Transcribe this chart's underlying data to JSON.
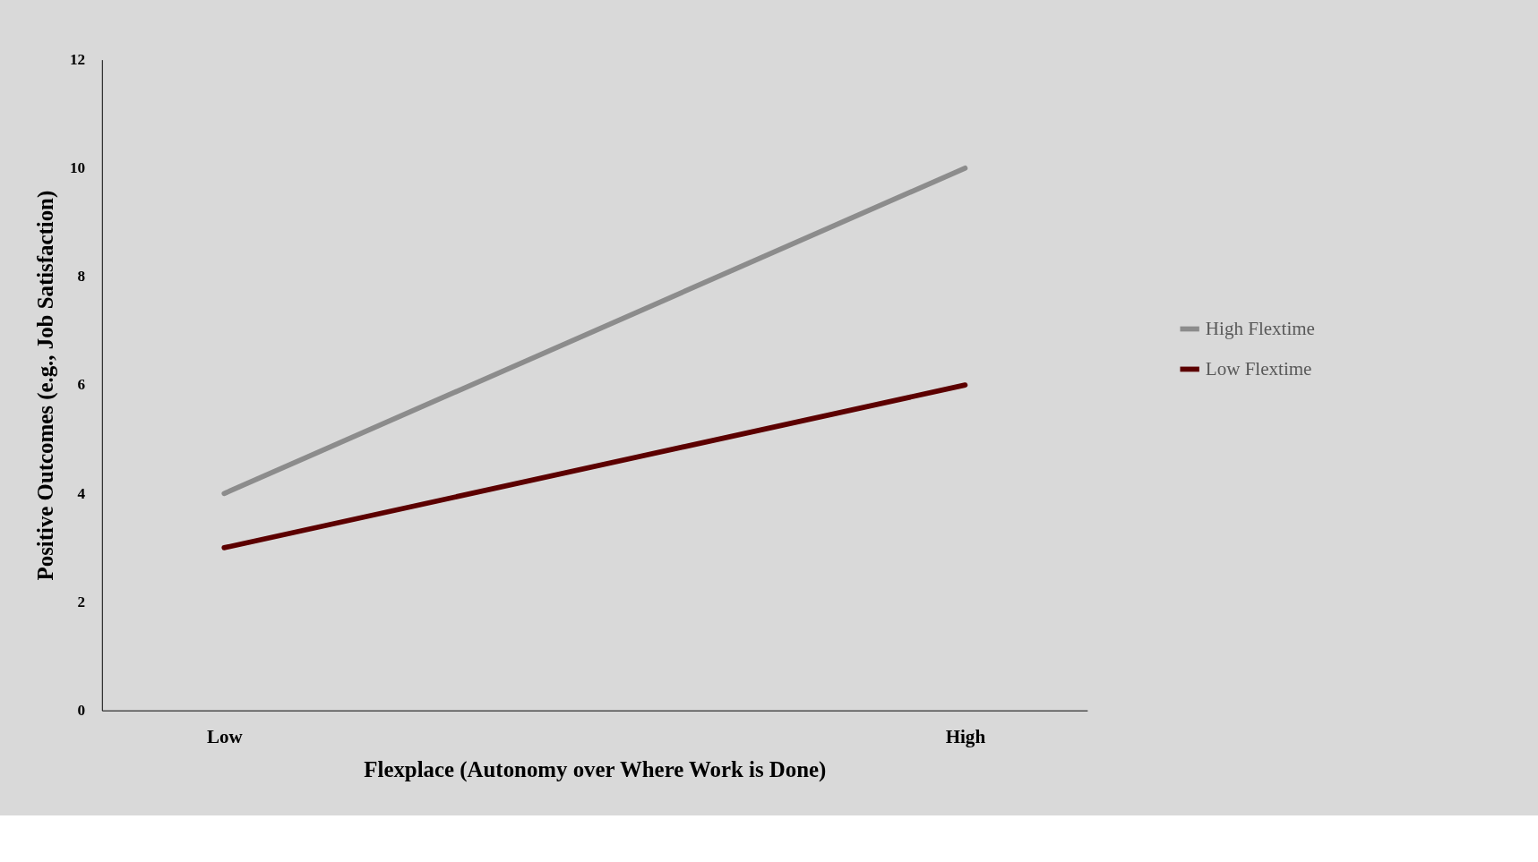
{
  "chart_data": {
    "type": "line",
    "xlabel": "Flexplace (Autonomy over Where Work is Done)",
    "ylabel": "Positive Outcomes (e.g., Job Satisfaction)",
    "categories": [
      "Low",
      "High"
    ],
    "series": [
      {
        "name": "High Flextime",
        "color": "#8c8c8c",
        "values": [
          4,
          10
        ]
      },
      {
        "name": "Low Flextime",
        "color": "#5c0000",
        "values": [
          3,
          6
        ]
      }
    ],
    "ylim": [
      0,
      12
    ],
    "yticks": [
      0,
      2,
      4,
      6,
      8,
      10,
      12
    ],
    "legend": "right",
    "marker": "none",
    "line_style": "solid"
  }
}
